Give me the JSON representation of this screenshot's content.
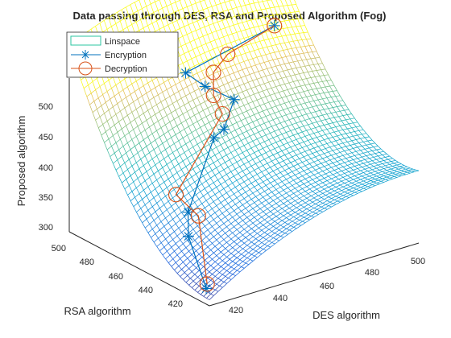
{
  "chart_data": {
    "type": "surface3d",
    "title": "Data passing through DES, RSA and Proposed Algorithm (Fog)",
    "xlabel": "DES algorithm",
    "ylabel": "RSA algorithm",
    "zlabel": "Proposed algorithm",
    "xlim": [
      415,
      505
    ],
    "ylim": [
      410,
      505
    ],
    "zlim": [
      290,
      545
    ],
    "x_ticks": [
      "420",
      "440",
      "460",
      "480",
      "500"
    ],
    "y_ticks": [
      "420",
      "440",
      "460",
      "480",
      "500"
    ],
    "z_ticks": [
      "300",
      "350",
      "400",
      "450",
      "500"
    ],
    "legend": {
      "position": "top-left",
      "entries": [
        "Linspace",
        "Encryption",
        "Decryption"
      ]
    },
    "colormap": "parula",
    "series": [
      {
        "name": "Linspace",
        "style": "surface-mesh",
        "surface_range_z": [
          290,
          545
        ]
      },
      {
        "name": "Encryption",
        "style": "line-asterisk",
        "color": "#0072bd",
        "points": [
          {
            "x": 420,
            "y": 420,
            "z": 300
          },
          {
            "x": 425,
            "y": 440,
            "z": 355
          },
          {
            "x": 428,
            "y": 445,
            "z": 385
          },
          {
            "x": 455,
            "y": 470,
            "z": 445
          },
          {
            "x": 458,
            "y": 468,
            "z": 458
          },
          {
            "x": 470,
            "y": 480,
            "z": 478
          },
          {
            "x": 462,
            "y": 487,
            "z": 500
          },
          {
            "x": 458,
            "y": 494,
            "z": 518
          },
          {
            "x": 500,
            "y": 500,
            "z": 540
          }
        ]
      },
      {
        "name": "Decryption",
        "style": "line-circle",
        "color": "#d95319",
        "points": [
          {
            "x": 421,
            "y": 421,
            "z": 305
          },
          {
            "x": 428,
            "y": 438,
            "z": 388
          },
          {
            "x": 426,
            "y": 450,
            "z": 410
          },
          {
            "x": 465,
            "y": 480,
            "z": 460
          },
          {
            "x": 465,
            "y": 486,
            "z": 483
          },
          {
            "x": 470,
            "y": 494,
            "z": 505
          },
          {
            "x": 478,
            "y": 497,
            "z": 522
          },
          {
            "x": 500,
            "y": 500,
            "z": 540
          }
        ]
      }
    ]
  }
}
